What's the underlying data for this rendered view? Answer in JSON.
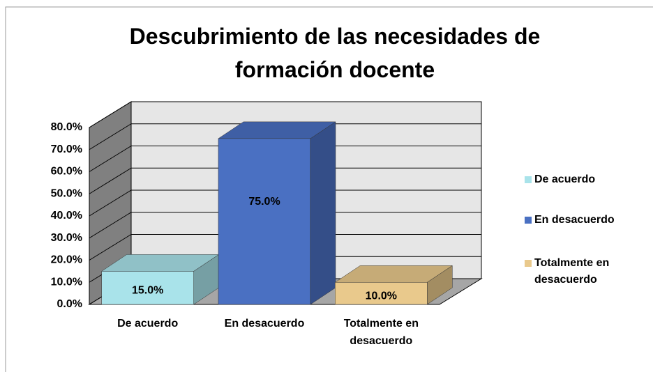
{
  "chart_data": {
    "type": "bar3d",
    "title": "Descubrimiento de las necesidades de formación docente",
    "categories": [
      "De acuerdo",
      "En desacuerdo",
      "Totalmente en desacuerdo"
    ],
    "values": [
      15,
      75,
      10
    ],
    "value_labels": [
      "15.0%",
      "75.0%",
      "10.0%"
    ],
    "colors": [
      "#a9e3ea",
      "#4a70c2",
      "#e9c98c"
    ],
    "ylim": [
      0,
      80
    ],
    "yticks": [
      {
        "value": 0,
        "label": "0.0%"
      },
      {
        "value": 10,
        "label": "10.0%"
      },
      {
        "value": 20,
        "label": "20.0%"
      },
      {
        "value": 30,
        "label": "30.0%"
      },
      {
        "value": 40,
        "label": "40.0%"
      },
      {
        "value": 50,
        "label": "50.0%"
      },
      {
        "value": 60,
        "label": "60.0%"
      },
      {
        "value": 70,
        "label": "70.0%"
      },
      {
        "value": 80,
        "label": "80.0%"
      }
    ],
    "grid": true,
    "legend": "right"
  }
}
